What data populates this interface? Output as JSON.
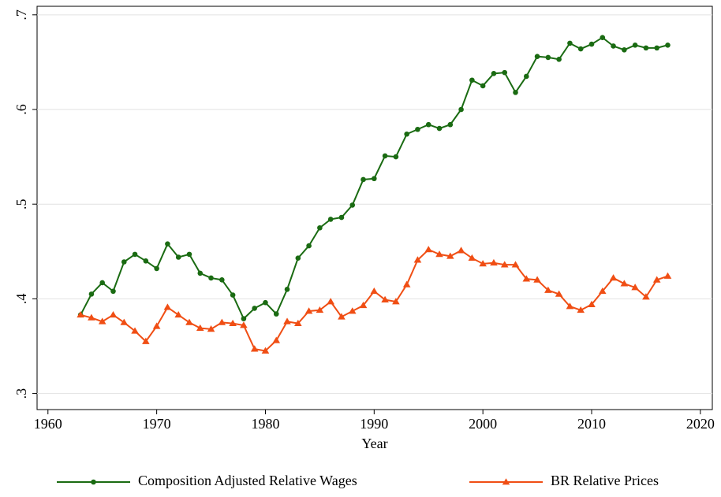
{
  "chart_data": {
    "type": "line",
    "x_label": "Year",
    "x": [
      1963,
      1964,
      1965,
      1966,
      1967,
      1968,
      1969,
      1970,
      1971,
      1972,
      1973,
      1974,
      1975,
      1976,
      1977,
      1978,
      1979,
      1980,
      1981,
      1982,
      1983,
      1984,
      1985,
      1986,
      1987,
      1988,
      1989,
      1990,
      1991,
      1992,
      1993,
      1994,
      1995,
      1996,
      1997,
      1998,
      1999,
      2000,
      2001,
      2002,
      2003,
      2004,
      2005,
      2006,
      2007,
      2008,
      2009,
      2010,
      2011,
      2012,
      2013,
      2014,
      2015,
      2016,
      2017
    ],
    "series": [
      {
        "name": "Composition Adjusted Relative Wages",
        "color": "#1a6b12",
        "marker": "circle",
        "values": [
          0.383,
          0.405,
          0.417,
          0.408,
          0.439,
          0.447,
          0.44,
          0.432,
          0.458,
          0.444,
          0.447,
          0.427,
          0.422,
          0.42,
          0.404,
          0.379,
          0.39,
          0.396,
          0.384,
          0.41,
          0.443,
          0.456,
          0.475,
          0.484,
          0.486,
          0.499,
          0.526,
          0.527,
          0.551,
          0.55,
          0.574,
          0.579,
          0.584,
          0.58,
          0.584,
          0.6,
          0.631,
          0.625,
          0.638,
          0.639,
          0.618,
          0.635,
          0.656,
          0.655,
          0.653,
          0.67,
          0.664,
          0.669,
          0.676,
          0.667,
          0.663,
          0.668,
          0.665,
          0.665,
          0.668
        ]
      },
      {
        "name": "BR Relative Prices",
        "color": "#f04e14",
        "marker": "triangle",
        "values": [
          0.383,
          0.38,
          0.376,
          0.383,
          0.375,
          0.366,
          0.355,
          0.371,
          0.391,
          0.383,
          0.375,
          0.369,
          0.368,
          0.375,
          0.374,
          0.372,
          0.347,
          0.345,
          0.356,
          0.376,
          0.374,
          0.387,
          0.388,
          0.397,
          0.381,
          0.387,
          0.393,
          0.408,
          0.399,
          0.397,
          0.415,
          0.441,
          0.452,
          0.447,
          0.445,
          0.451,
          0.443,
          0.437,
          0.438,
          0.436,
          0.436,
          0.421,
          0.42,
          0.409,
          0.405,
          0.392,
          0.388,
          0.394,
          0.408,
          0.422,
          0.416,
          0.412,
          0.402,
          0.42,
          0.424
        ]
      }
    ],
    "xlim": [
      1959,
      2021.1
    ],
    "xticks": [
      1960,
      1970,
      1980,
      1990,
      2000,
      2010,
      2020
    ],
    "ylim": [
      0.283,
      0.709
    ],
    "yticks": [
      {
        "value": 0.3,
        "label": ".3"
      },
      {
        "value": 0.4,
        "label": ".4"
      },
      {
        "value": 0.5,
        "label": ".5"
      },
      {
        "value": 0.6,
        "label": ".6"
      },
      {
        "value": 0.7,
        "label": ".7"
      }
    ],
    "grid": true,
    "legend": "bottom"
  }
}
